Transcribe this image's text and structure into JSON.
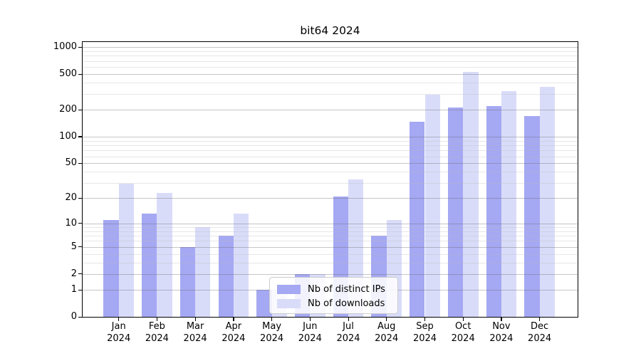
{
  "chart_data": {
    "type": "bar",
    "title": "bit64 2024",
    "categories": [
      "Jan 2024",
      "Feb 2024",
      "Mar 2024",
      "Apr 2024",
      "May 2024",
      "Jun 2024",
      "Jul 2024",
      "Aug 2024",
      "Sep 2024",
      "Oct 2024",
      "Nov 2024",
      "Dec 2024"
    ],
    "series": [
      {
        "name": "Nb of distinct IPs",
        "color": "#a5a8f2",
        "values": [
          11,
          13,
          5,
          7,
          1,
          2,
          21,
          7,
          148,
          210,
          218,
          170
        ]
      },
      {
        "name": "Nb of downloads",
        "color": "#d9dcf9",
        "values": [
          29,
          23,
          9,
          13,
          1,
          2,
          33,
          11,
          295,
          530,
          324,
          360
        ]
      }
    ],
    "xlabel": "",
    "ylabel": "",
    "yscale": "log1p",
    "ylim": [
      0,
      1000
    ],
    "y_major_ticks": [
      0,
      1,
      2,
      5,
      10,
      20,
      50,
      100,
      200,
      500,
      1000
    ],
    "y_minor_gridlines": [
      3,
      4,
      6,
      7,
      8,
      9,
      30,
      40,
      60,
      70,
      80,
      90,
      300,
      400,
      600,
      700,
      800,
      900
    ],
    "grid": true,
    "legend": {
      "position": "lower center",
      "labels": [
        "Nb of distinct IPs",
        "Nb of downloads"
      ]
    }
  }
}
